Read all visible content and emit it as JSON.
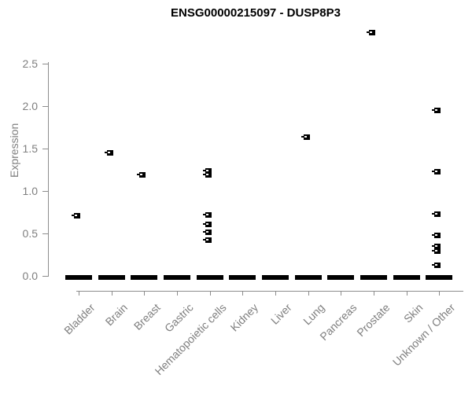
{
  "title": "ENSG00000215097 - DUSP8P3",
  "colors": {
    "marker": "#000000",
    "axis": "#8c8c8c",
    "axis_text": "#7f7f7f",
    "title_text": "#000000",
    "background": "#ffffff"
  },
  "chart_data": {
    "type": "scatter",
    "subtype": "strip-plot-by-category",
    "title": "ENSG00000215097 - DUSP8P3",
    "xlabel": "",
    "ylabel": "Expression",
    "ylim": [
      0,
      2.5
    ],
    "yticks": [
      0,
      0.5,
      1,
      1.5,
      2,
      2.5
    ],
    "ytick_labels": [
      "0.0",
      "0.5",
      "1.0",
      "1.5",
      "2.0",
      "2.5"
    ],
    "grid": false,
    "legend": null,
    "marker_style": "small black square with white notch",
    "categories": [
      "Bladder",
      "Brain",
      "Breast",
      "Gastric",
      "Hematopoietic cells",
      "Kidney",
      "Liver",
      "Lung",
      "Pancreas",
      "Prostate",
      "Skin",
      "Unknown / Other"
    ],
    "series": [
      {
        "category": "Bladder",
        "values": [
          0.71
        ],
        "zero_cluster": true
      },
      {
        "category": "Brain",
        "values": [
          1.45
        ],
        "zero_cluster": true
      },
      {
        "category": "Breast",
        "values": [
          1.19
        ],
        "zero_cluster": true
      },
      {
        "category": "Gastric",
        "values": [],
        "zero_cluster": true
      },
      {
        "category": "Hematopoietic cells",
        "values": [
          1.24,
          1.19,
          0.72,
          0.61,
          0.52,
          0.43
        ],
        "zero_cluster": true
      },
      {
        "category": "Kidney",
        "values": [],
        "zero_cluster": true
      },
      {
        "category": "Liver",
        "values": [],
        "zero_cluster": true
      },
      {
        "category": "Lung",
        "values": [
          1.64
        ],
        "zero_cluster": true
      },
      {
        "category": "Pancreas",
        "values": [],
        "zero_cluster": true
      },
      {
        "category": "Prostate",
        "values": [
          2.87
        ],
        "zero_cluster": true
      },
      {
        "category": "Skin",
        "values": [],
        "zero_cluster": true
      },
      {
        "category": "Unknown / Other",
        "values": [
          1.95,
          1.23,
          0.73,
          0.48,
          0.35,
          0.3,
          0.13
        ],
        "zero_cluster": true
      }
    ]
  }
}
